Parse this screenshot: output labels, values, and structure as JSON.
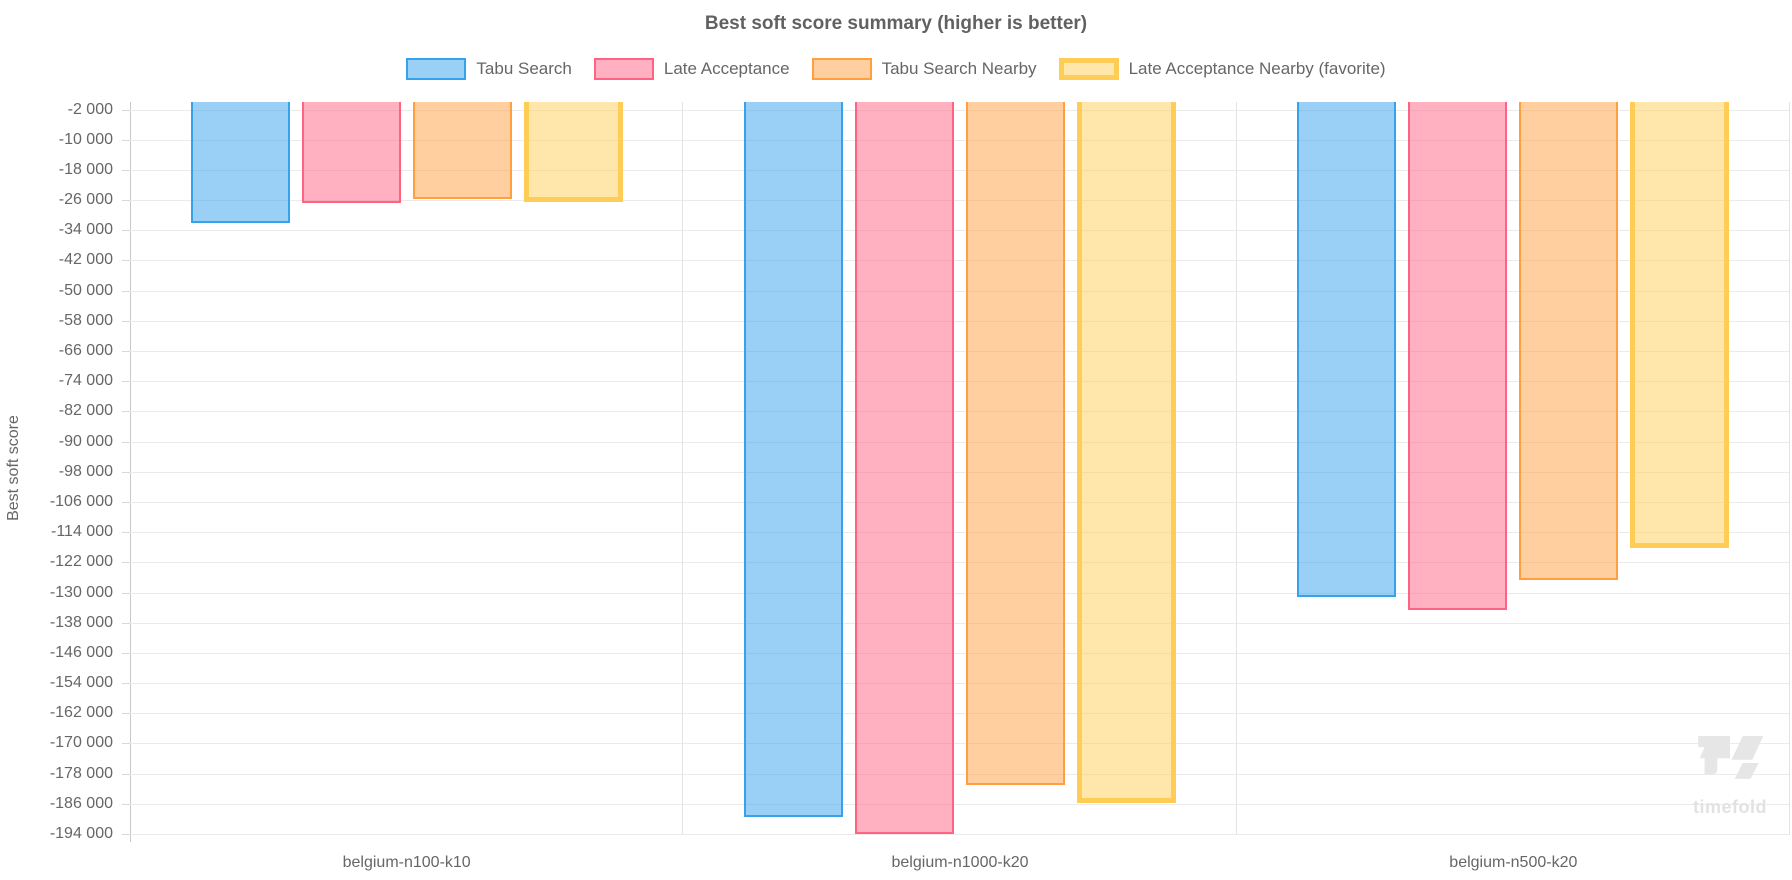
{
  "title": "Best soft score summary (higher is better)",
  "y_axis_title": "Best soft score",
  "watermark_text": "timefold",
  "chart_data": {
    "type": "bar",
    "title": "Best soft score summary (higher is better)",
    "xlabel": "",
    "ylabel": "Best soft score",
    "legend_position": "top",
    "grid": true,
    "categories": [
      "belgium-n100-k10",
      "belgium-n1000-k20",
      "belgium-n500-k20"
    ],
    "series": [
      {
        "name": "Tabu Search",
        "favorite": false,
        "border_color": "#36A2EB",
        "fill_color": "rgba(54,162,235,0.5)",
        "values": [
          -32200,
          -189500,
          -131200
        ]
      },
      {
        "name": "Late Acceptance",
        "favorite": false,
        "border_color": "#FF6384",
        "fill_color": "rgba(255,99,132,0.5)",
        "values": [
          -26800,
          -194100,
          -134700
        ]
      },
      {
        "name": "Tabu Search Nearby",
        "favorite": false,
        "border_color": "#FF9F40",
        "fill_color": "rgba(255,159,64,0.5)",
        "values": [
          -25800,
          -181000,
          -126800
        ]
      },
      {
        "name": "Late Acceptance Nearby (favorite)",
        "favorite": true,
        "border_color": "#FFCD56",
        "fill_color": "rgba(255,205,86,0.5)",
        "values": [
          -26500,
          -185900,
          -118300
        ]
      }
    ],
    "y_axis": {
      "max": 0,
      "min": -194000,
      "tick_start": -2000,
      "tick_step": -8000,
      "tick_count": 25,
      "tick_labels": [
        "-2 000",
        "-10 000",
        "-18 000",
        "-26 000",
        "-34 000",
        "-42 000",
        "-50 000",
        "-58 000",
        "-66 000",
        "-74 000",
        "-82 000",
        "-90 000",
        "-98 000",
        "-106 000",
        "-114 000",
        "-122 000",
        "-130 000",
        "-138 000",
        "-146 000",
        "-154 000",
        "-162 000",
        "-170 000",
        "-178 000",
        "-186 000",
        "-194 000"
      ]
    }
  }
}
